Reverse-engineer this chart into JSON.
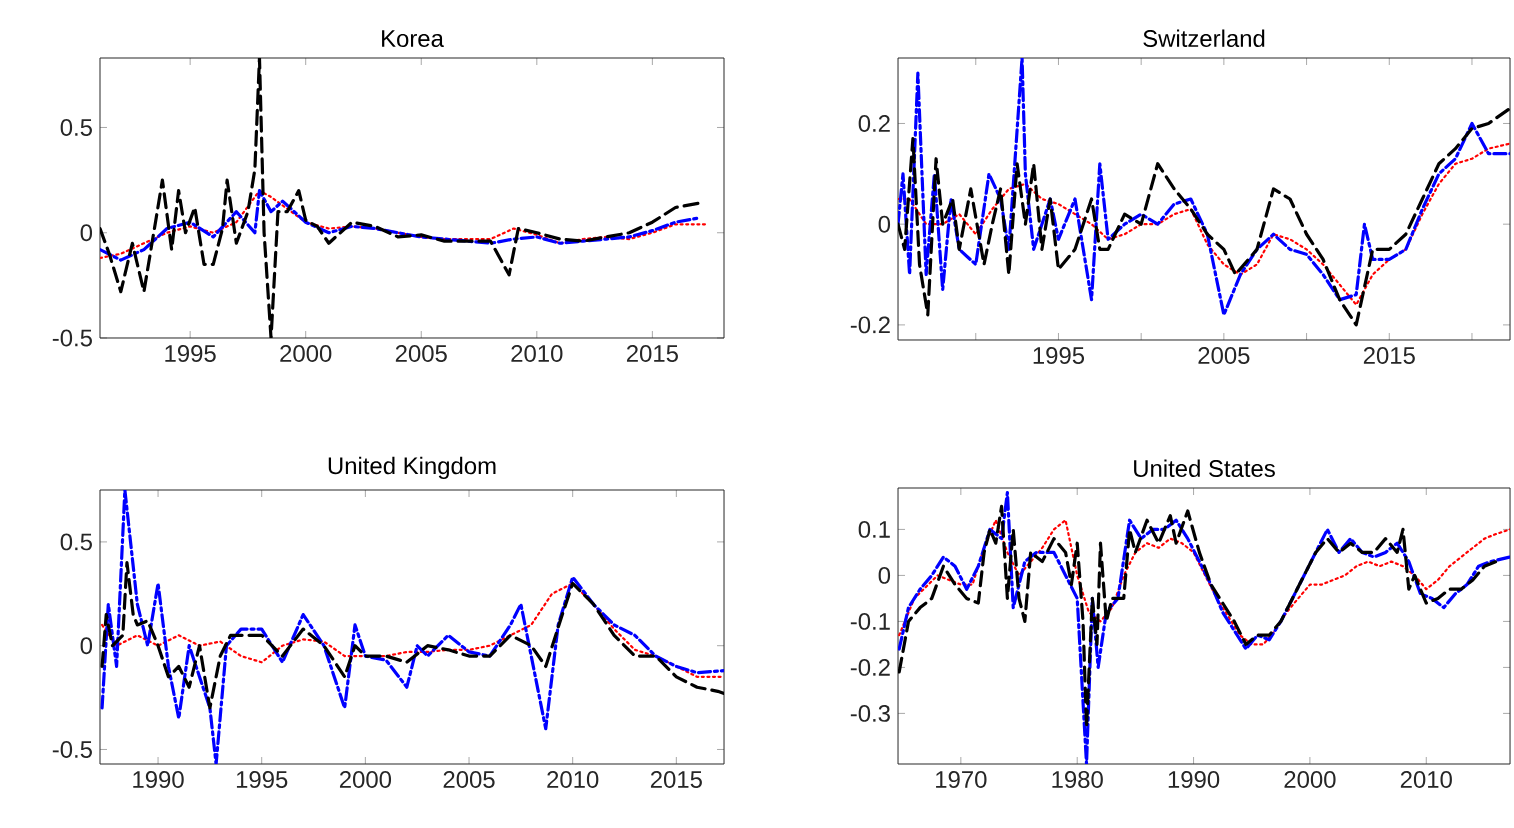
{
  "chart_data": [
    {
      "type": "line",
      "title": "Korea",
      "xlim": [
        1991.1,
        2018.1
      ],
      "ylim": [
        -0.5,
        0.83
      ],
      "xticks": [
        1995,
        2000,
        2005,
        2010,
        2015
      ],
      "yticks": [
        -0.5,
        0,
        0.5
      ],
      "grid": false,
      "series": [
        {
          "color": "#ff0000",
          "line_style": "dotted",
          "x": [
            1991.1,
            1992,
            1993,
            1994,
            1995,
            1996,
            1997,
            1998,
            1998.5,
            1999,
            2000,
            2001,
            2002,
            2003,
            2004,
            2005,
            2006,
            2007,
            2008,
            2009,
            2010,
            2011,
            2012,
            2013,
            2014,
            2015,
            2016,
            2017.4
          ],
          "values": [
            -0.12,
            -0.1,
            -0.05,
            0.0,
            0.03,
            0.0,
            0.05,
            0.2,
            0.17,
            0.13,
            0.05,
            0.02,
            0.03,
            0.02,
            0.0,
            -0.02,
            -0.03,
            -0.03,
            -0.03,
            0.02,
            -0.01,
            -0.05,
            -0.03,
            -0.02,
            -0.03,
            0.0,
            0.04,
            0.04
          ]
        },
        {
          "color": "#0000ff",
          "line_style": "dashdot",
          "x": [
            1991.1,
            1992,
            1993,
            1994,
            1995,
            1996,
            1997,
            1997.8,
            1998,
            1998.5,
            1999,
            2000,
            2001,
            2002,
            2003,
            2004,
            2005,
            2006,
            2007,
            2008,
            2009,
            2010,
            2011,
            2012,
            2013,
            2014,
            2015,
            2016,
            2017
          ],
          "values": [
            -0.08,
            -0.13,
            -0.08,
            0.02,
            0.05,
            -0.02,
            0.1,
            0.0,
            0.2,
            0.1,
            0.15,
            0.05,
            0.0,
            0.03,
            0.02,
            0.0,
            -0.02,
            -0.03,
            -0.04,
            -0.05,
            -0.03,
            -0.02,
            -0.05,
            -0.04,
            -0.03,
            -0.02,
            0.01,
            0.05,
            0.07
          ]
        },
        {
          "color": "#000000",
          "line_style": "dashed",
          "x": [
            1991.1,
            1991.5,
            1992,
            1992.5,
            1993,
            1993.5,
            1993.8,
            1994.2,
            1994.5,
            1994.8,
            1995.2,
            1995.6,
            1996,
            1996.4,
            1996.6,
            1997,
            1997.5,
            1997.8,
            1998,
            1998.2,
            1998.5,
            1998.8,
            1999.2,
            1999.7,
            2000,
            2000.5,
            2001,
            2002,
            2003,
            2004,
            2005,
            2006,
            2007,
            2008,
            2008.8,
            2009.2,
            2010,
            2011,
            2012,
            2013,
            2014,
            2015,
            2016,
            2017
          ],
          "values": [
            0.02,
            -0.1,
            -0.28,
            -0.05,
            -0.28,
            0.05,
            0.25,
            -0.08,
            0.2,
            0.0,
            0.12,
            -0.15,
            -0.15,
            0.02,
            0.25,
            -0.05,
            0.1,
            0.3,
            0.83,
            0.0,
            -0.5,
            0.1,
            0.1,
            0.2,
            0.06,
            0.03,
            -0.05,
            0.05,
            0.03,
            -0.02,
            -0.01,
            -0.04,
            -0.04,
            -0.04,
            -0.2,
            0.02,
            0.0,
            -0.03,
            -0.04,
            -0.02,
            0.0,
            0.05,
            0.12,
            0.14
          ]
        }
      ]
    },
    {
      "type": "line",
      "title": "Switzerland",
      "xlim": [
        1985.3,
        2022.3
      ],
      "ylim": [
        -0.23,
        0.33
      ],
      "xticks": [
        {
          "value": 1990,
          "label": null
        },
        1995,
        {
          "value": 2000,
          "label": null
        },
        2005,
        {
          "value": 2010,
          "label": null
        },
        2015,
        {
          "value": 2020,
          "label": null
        }
      ],
      "yticks": [
        -0.2,
        0,
        0.2
      ],
      "grid": false,
      "series": [
        {
          "color": "#ff0000",
          "line_style": "dotted",
          "x": [
            1985.3,
            1986,
            1987,
            1988,
            1989,
            1990,
            1991,
            1992,
            1993,
            1994,
            1995,
            1996,
            1997,
            1998,
            1999,
            2000,
            2001,
            2002,
            2003,
            2004,
            2005,
            2006,
            2007,
            2008,
            2009,
            2010,
            2011,
            2012,
            2013,
            2014,
            2015,
            2016,
            2017,
            2018,
            2019,
            2020,
            2021,
            2022.3
          ],
          "values": [
            0.05,
            0.05,
            0.0,
            0.0,
            0.02,
            -0.02,
            0.03,
            0.07,
            0.08,
            0.05,
            0.04,
            0.02,
            0.0,
            -0.03,
            -0.02,
            0.0,
            0.0,
            0.02,
            0.03,
            -0.04,
            -0.08,
            -0.1,
            -0.08,
            -0.02,
            -0.03,
            -0.05,
            -0.08,
            -0.12,
            -0.16,
            -0.1,
            -0.07,
            -0.05,
            0.02,
            0.08,
            0.12,
            0.13,
            0.15,
            0.16
          ]
        },
        {
          "color": "#0000ff",
          "line_style": "dashdot",
          "x": [
            1985.3,
            1985.6,
            1986,
            1986.5,
            1987,
            1987.5,
            1988,
            1988.5,
            1989,
            1990,
            1990.8,
            1991.5,
            1992,
            1992.8,
            1993,
            1993.5,
            1994.5,
            1995,
            1996,
            1997,
            1997.5,
            1998,
            1999,
            2000,
            2001,
            2002,
            2003,
            2004,
            2005,
            2006,
            2007,
            2008,
            2009,
            2010,
            2011,
            2012,
            2013,
            2013.5,
            2014,
            2015,
            2016,
            2017,
            2018,
            2019,
            2020,
            2021,
            2022.3
          ],
          "values": [
            0.0,
            0.1,
            -0.1,
            0.3,
            -0.1,
            0.1,
            -0.13,
            0.05,
            -0.05,
            -0.08,
            0.1,
            0.05,
            -0.05,
            0.33,
            0.1,
            -0.05,
            0.05,
            -0.03,
            0.05,
            -0.15,
            0.12,
            -0.03,
            0.0,
            0.02,
            0.0,
            0.04,
            0.05,
            -0.02,
            -0.18,
            -0.1,
            -0.05,
            -0.02,
            -0.05,
            -0.06,
            -0.1,
            -0.15,
            -0.14,
            0.0,
            -0.07,
            -0.07,
            -0.05,
            0.03,
            0.1,
            0.13,
            0.2,
            0.14,
            0.14
          ]
        },
        {
          "color": "#000000",
          "line_style": "dashed",
          "x": [
            1985.3,
            1985.7,
            1986.2,
            1986.6,
            1987.1,
            1987.6,
            1988,
            1988.6,
            1989,
            1989.7,
            1990.5,
            1991,
            1991.5,
            1992,
            1992.5,
            1993,
            1993.5,
            1994,
            1994.5,
            1995,
            1996,
            1997,
            1997.5,
            1998,
            1999,
            2000,
            2001,
            2002,
            2003,
            2004,
            2005,
            2005.7,
            2007,
            2008,
            2009,
            2010,
            2011,
            2012,
            2013,
            2014,
            2015,
            2016,
            2017,
            2018,
            2019,
            2020,
            2021,
            2022.3
          ],
          "values": [
            0.0,
            -0.05,
            0.17,
            -0.08,
            -0.18,
            0.13,
            0.0,
            0.05,
            -0.05,
            0.07,
            -0.08,
            0.0,
            0.07,
            -0.1,
            0.12,
            0.0,
            0.12,
            -0.05,
            0.05,
            -0.09,
            -0.05,
            0.05,
            -0.05,
            -0.05,
            0.02,
            0.0,
            0.12,
            0.07,
            0.03,
            -0.02,
            -0.05,
            -0.1,
            -0.05,
            0.07,
            0.05,
            -0.02,
            -0.07,
            -0.15,
            -0.2,
            -0.05,
            -0.05,
            -0.02,
            0.05,
            0.12,
            0.15,
            0.19,
            0.2,
            0.23
          ]
        }
      ]
    },
    {
      "type": "line",
      "title": "United Kingdom",
      "xlim": [
        1987.2,
        2017.3
      ],
      "ylim": [
        -0.57,
        0.75
      ],
      "xticks": [
        1990,
        1995,
        2000,
        2005,
        2010,
        2015
      ],
      "yticks": [
        -0.5,
        0,
        0.5
      ],
      "grid": false,
      "series": [
        {
          "color": "#ff0000",
          "line_style": "dotted",
          "x": [
            1987.3,
            1988,
            1989,
            1990,
            1991,
            1992,
            1993,
            1994,
            1995,
            1996,
            1997,
            1998,
            1999,
            2000,
            2001,
            2002,
            2003,
            2004,
            2005,
            2006,
            2007,
            2008,
            2009,
            2010,
            2011,
            2012,
            2013,
            2014,
            2015,
            2016,
            2017.3
          ],
          "values": [
            0.1,
            0.0,
            0.05,
            0.0,
            0.05,
            0.0,
            0.02,
            -0.05,
            -0.08,
            0.0,
            0.03,
            0.02,
            -0.05,
            -0.05,
            -0.05,
            -0.03,
            -0.03,
            -0.02,
            -0.02,
            0.0,
            0.05,
            0.1,
            0.25,
            0.3,
            0.2,
            0.08,
            -0.02,
            -0.05,
            -0.1,
            -0.15,
            -0.15
          ]
        },
        {
          "color": "#0000ff",
          "line_style": "dashdot",
          "x": [
            1987.3,
            1987.6,
            1988,
            1988.4,
            1989,
            1989.5,
            1990,
            1990.5,
            1991,
            1991.5,
            1992.5,
            1992.8,
            1993.3,
            1994,
            1995,
            1996,
            1997,
            1998,
            1999,
            1999.5,
            2000,
            2001,
            2002,
            2002.5,
            2003,
            2004,
            2005,
            2006,
            2007,
            2007.5,
            2008,
            2008.7,
            2009.3,
            2010,
            2011,
            2012,
            2013,
            2014,
            2015,
            2016,
            2017.3
          ],
          "values": [
            -0.3,
            0.2,
            -0.1,
            0.75,
            0.2,
            0.0,
            0.3,
            -0.1,
            -0.35,
            0.0,
            -0.3,
            -0.57,
            0.0,
            0.08,
            0.08,
            -0.08,
            0.15,
            0.0,
            -0.3,
            0.1,
            -0.05,
            -0.07,
            -0.2,
            0.0,
            -0.05,
            0.05,
            -0.03,
            -0.05,
            0.1,
            0.2,
            -0.05,
            -0.4,
            0.1,
            0.33,
            0.2,
            0.1,
            0.05,
            -0.05,
            -0.1,
            -0.13,
            -0.12
          ]
        },
        {
          "color": "#000000",
          "line_style": "dashed",
          "x": [
            1987.3,
            1987.5,
            1987.8,
            1988.3,
            1988.5,
            1988.8,
            1989,
            1989.5,
            1990,
            1990.5,
            1991,
            1991.5,
            1992,
            1992.5,
            1993,
            1993.5,
            1994,
            1995,
            1996,
            1997,
            1998,
            1999,
            1999.5,
            2000,
            2001,
            2002,
            2003,
            2004,
            2005,
            2006,
            2007,
            2008,
            2008.7,
            2009.5,
            2010,
            2011,
            2012,
            2013,
            2014,
            2015,
            2016,
            2017,
            2017.3
          ],
          "values": [
            -0.1,
            0.15,
            0.0,
            0.05,
            0.4,
            0.15,
            0.1,
            0.12,
            0.0,
            -0.15,
            -0.1,
            -0.2,
            0.0,
            -0.3,
            -0.05,
            0.05,
            0.05,
            0.05,
            -0.05,
            0.08,
            0.0,
            -0.15,
            0.0,
            -0.05,
            -0.05,
            -0.08,
            0.0,
            -0.02,
            -0.05,
            -0.05,
            0.05,
            0.0,
            -0.1,
            0.15,
            0.3,
            0.2,
            0.05,
            -0.05,
            -0.05,
            -0.15,
            -0.2,
            -0.22,
            -0.23
          ]
        }
      ]
    },
    {
      "type": "line",
      "title": "United States",
      "xlim": [
        1964.6,
        2017.2
      ],
      "ylim": [
        -0.41,
        0.19
      ],
      "xticks": [
        1970,
        1980,
        1990,
        2000,
        2010
      ],
      "yticks": [
        -0.3,
        -0.2,
        -0.1,
        0,
        0.1
      ],
      "grid": false,
      "series": [
        {
          "color": "#ff0000",
          "line_style": "dotted",
          "x": [
            1964.7,
            1966,
            1968,
            1970,
            1971,
            1972,
            1973,
            1974,
            1975,
            1976,
            1977,
            1978,
            1979,
            1980,
            1981,
            1982,
            1983,
            1984,
            1985,
            1986,
            1987,
            1988,
            1989,
            1990,
            1991,
            1992,
            1993,
            1994,
            1995,
            1996,
            1997,
            1998,
            1999,
            2000,
            2001,
            2002,
            2003,
            2004,
            2005,
            2006,
            2007,
            2008,
            2009,
            2010,
            2011,
            2012,
            2013,
            2014,
            2015,
            2016,
            2017.2
          ],
          "values": [
            -0.13,
            -0.05,
            0.0,
            -0.02,
            -0.02,
            0.06,
            0.12,
            0.05,
            0.0,
            0.03,
            0.06,
            0.1,
            0.12,
            0.0,
            -0.08,
            -0.1,
            -0.07,
            0.0,
            0.05,
            0.07,
            0.06,
            0.08,
            0.07,
            0.05,
            0.0,
            -0.05,
            -0.09,
            -0.13,
            -0.15,
            -0.15,
            -0.12,
            -0.08,
            -0.05,
            -0.02,
            -0.02,
            -0.01,
            0.0,
            0.02,
            0.03,
            0.02,
            0.03,
            0.02,
            0.0,
            -0.03,
            -0.01,
            0.02,
            0.04,
            0.06,
            0.08,
            0.09,
            0.1
          ]
        },
        {
          "color": "#0000ff",
          "line_style": "dashdot",
          "x": [
            1964.7,
            1965.5,
            1966.5,
            1967.5,
            1968.5,
            1969.5,
            1970.5,
            1971.5,
            1972.5,
            1973.5,
            1974,
            1974.5,
            1975.5,
            1976.5,
            1978,
            1979,
            1980,
            1980.8,
            1981.3,
            1981.8,
            1982.5,
            1983.5,
            1984.5,
            1985.5,
            1986.5,
            1987.5,
            1988.5,
            1989.5,
            1990.5,
            1991.5,
            1992.5,
            1993.5,
            1994.5,
            1995.5,
            1996.5,
            1997.5,
            1998.5,
            1999.5,
            2000.5,
            2001.5,
            2002.5,
            2003.5,
            2004.5,
            2005.5,
            2006.5,
            2007.5,
            2008.5,
            2009.5,
            2010.5,
            2011.5,
            2012.5,
            2013.5,
            2014.5,
            2015.5,
            2017.2
          ],
          "values": [
            -0.16,
            -0.07,
            -0.03,
            0.0,
            0.04,
            0.02,
            -0.03,
            0.02,
            0.1,
            0.08,
            0.18,
            -0.07,
            0.03,
            0.05,
            0.05,
            0.0,
            -0.05,
            -0.41,
            -0.05,
            -0.2,
            -0.08,
            -0.05,
            0.12,
            0.08,
            0.1,
            0.1,
            0.12,
            0.08,
            0.03,
            -0.02,
            -0.08,
            -0.12,
            -0.16,
            -0.13,
            -0.14,
            -0.1,
            -0.05,
            0.0,
            0.05,
            0.1,
            0.05,
            0.08,
            0.05,
            0.04,
            0.05,
            0.07,
            0.03,
            -0.04,
            -0.05,
            -0.07,
            -0.04,
            -0.02,
            0.02,
            0.03,
            0.04
          ]
        },
        {
          "color": "#000000",
          "line_style": "dashed",
          "x": [
            1964.7,
            1965.5,
            1966.5,
            1967.5,
            1968.5,
            1969.5,
            1970.5,
            1971.5,
            1972,
            1972.5,
            1973,
            1973.5,
            1974,
            1974.5,
            1975,
            1975.5,
            1976,
            1977,
            1978,
            1979,
            1979.5,
            1980,
            1980.5,
            1980.8,
            1981.3,
            1981.7,
            1982,
            1982.5,
            1983,
            1984,
            1984.5,
            1985,
            1986,
            1987,
            1988,
            1988.5,
            1989.5,
            1990.5,
            1991.5,
            1992.5,
            1993.5,
            1994.5,
            1995.5,
            1996.5,
            1997.5,
            1998.5,
            1999.5,
            2000.5,
            2001.5,
            2002.5,
            2003.5,
            2004.5,
            2005.5,
            2006.5,
            2007.5,
            2008,
            2008.5,
            2009,
            2010,
            2011,
            2012,
            2013,
            2014,
            2015,
            2016
          ],
          "values": [
            -0.21,
            -0.1,
            -0.07,
            -0.05,
            0.02,
            -0.02,
            -0.05,
            -0.06,
            0.05,
            0.1,
            0.07,
            0.15,
            -0.05,
            0.1,
            -0.05,
            -0.1,
            0.05,
            0.03,
            0.08,
            0.05,
            -0.02,
            0.07,
            -0.1,
            -0.33,
            -0.05,
            -0.15,
            0.07,
            -0.1,
            -0.05,
            -0.05,
            0.1,
            0.05,
            0.12,
            0.07,
            0.13,
            0.07,
            0.14,
            0.05,
            -0.02,
            -0.06,
            -0.1,
            -0.15,
            -0.13,
            -0.13,
            -0.1,
            -0.05,
            0.0,
            0.05,
            0.08,
            0.05,
            0.07,
            0.05,
            0.05,
            0.08,
            0.05,
            0.1,
            -0.03,
            0.0,
            -0.06,
            -0.05,
            -0.03,
            -0.03,
            -0.01,
            0.02,
            0.03
          ]
        }
      ]
    }
  ]
}
